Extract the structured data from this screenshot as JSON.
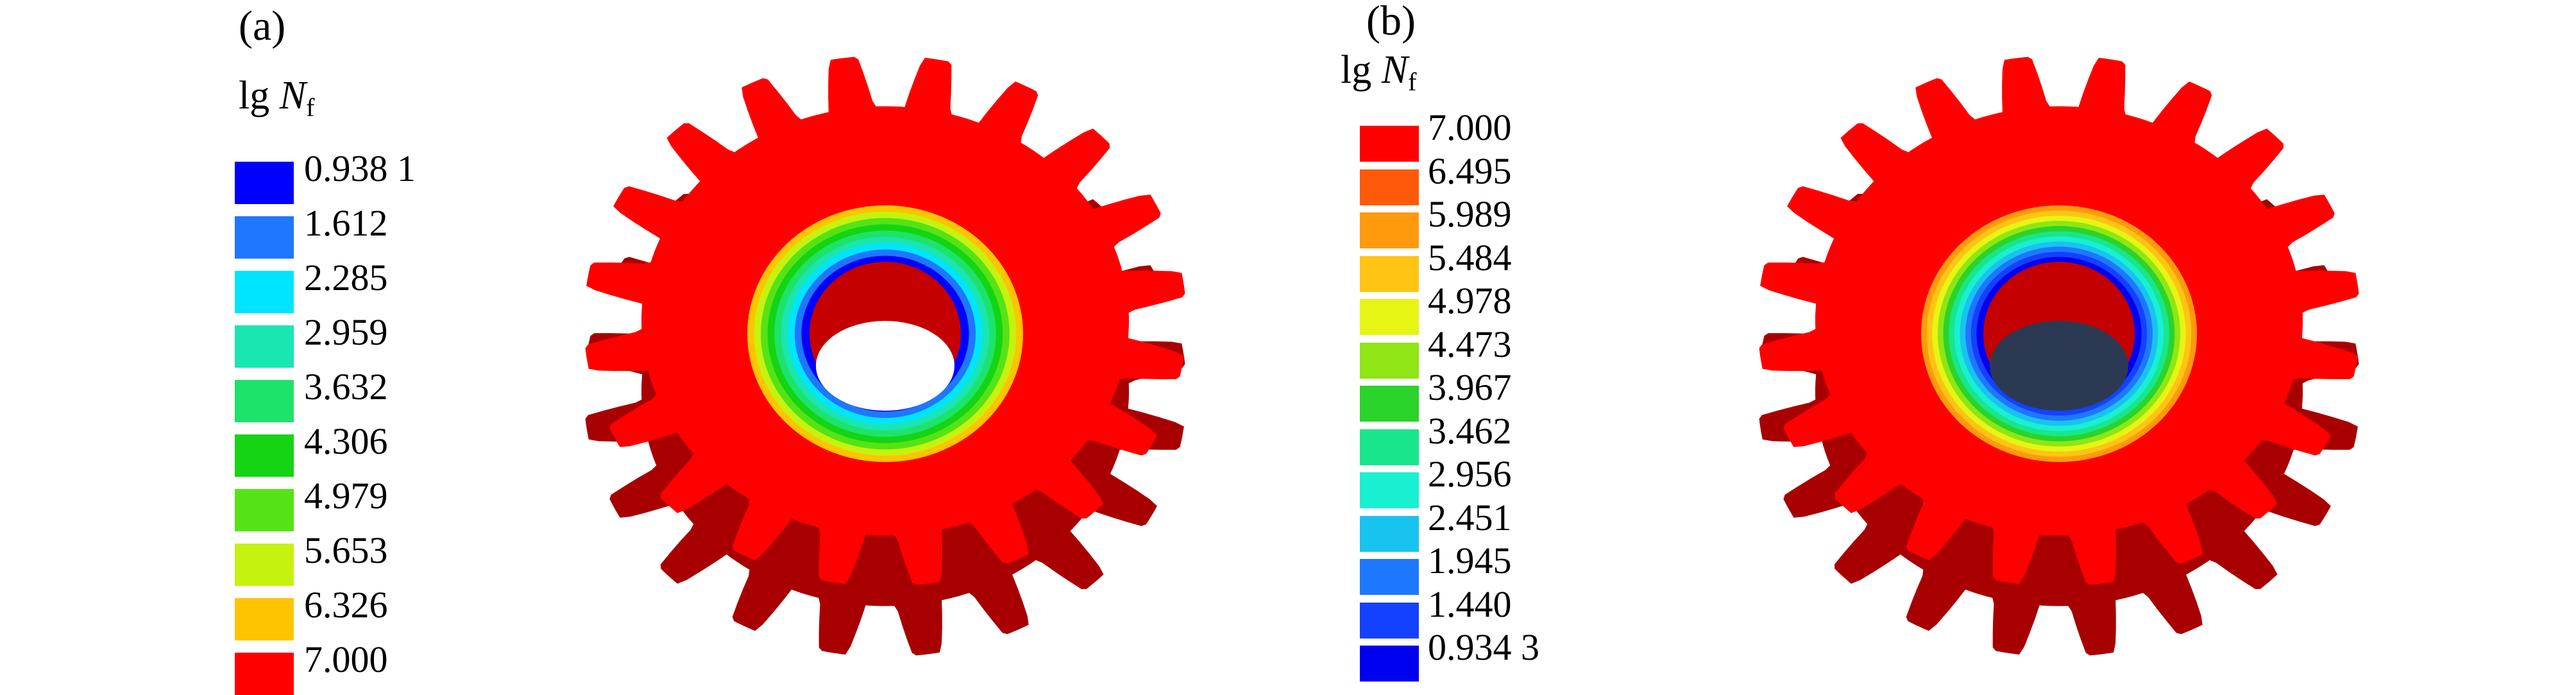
{
  "panels": [
    {
      "label": "(a)",
      "legend_title": {
        "prefix": "lg ",
        "symbol": "N",
        "subscript": "f"
      },
      "legend_items": [
        {
          "value": "0.938 1",
          "color": "#0000ff"
        },
        {
          "value": "1.612",
          "color": "#1f77ff"
        },
        {
          "value": "2.285",
          "color": "#00e5ff"
        },
        {
          "value": "2.959",
          "color": "#19e6b0"
        },
        {
          "value": "3.632",
          "color": "#1ee36a"
        },
        {
          "value": "4.306",
          "color": "#14d414"
        },
        {
          "value": "4.979",
          "color": "#56e316"
        },
        {
          "value": "5.653",
          "color": "#c6f20f"
        },
        {
          "value": "6.326",
          "color": "#ffc400"
        },
        {
          "value": "7.000",
          "color": "#ff0000"
        }
      ]
    },
    {
      "label": "(b)",
      "legend_title": {
        "prefix": "lg ",
        "symbol": "N",
        "subscript": "f"
      },
      "legend_items": [
        {
          "value": "7.000",
          "color": "#ff0000"
        },
        {
          "value": "6.495",
          "color": "#ff5a0a"
        },
        {
          "value": "5.989",
          "color": "#ff9a0d"
        },
        {
          "value": "5.484",
          "color": "#ffc414"
        },
        {
          "value": "4.978",
          "color": "#e6f514"
        },
        {
          "value": "4.473",
          "color": "#8fe614"
        },
        {
          "value": "3.967",
          "color": "#2ad42a"
        },
        {
          "value": "3.462",
          "color": "#19e68c"
        },
        {
          "value": "2.956",
          "color": "#19f0d2"
        },
        {
          "value": "2.451",
          "color": "#19c3f0"
        },
        {
          "value": "1.945",
          "color": "#1e78ff"
        },
        {
          "value": "1.440",
          "color": "#1441ff"
        },
        {
          "value": "0.934 3",
          "color": "#0000f0"
        }
      ]
    }
  ]
}
